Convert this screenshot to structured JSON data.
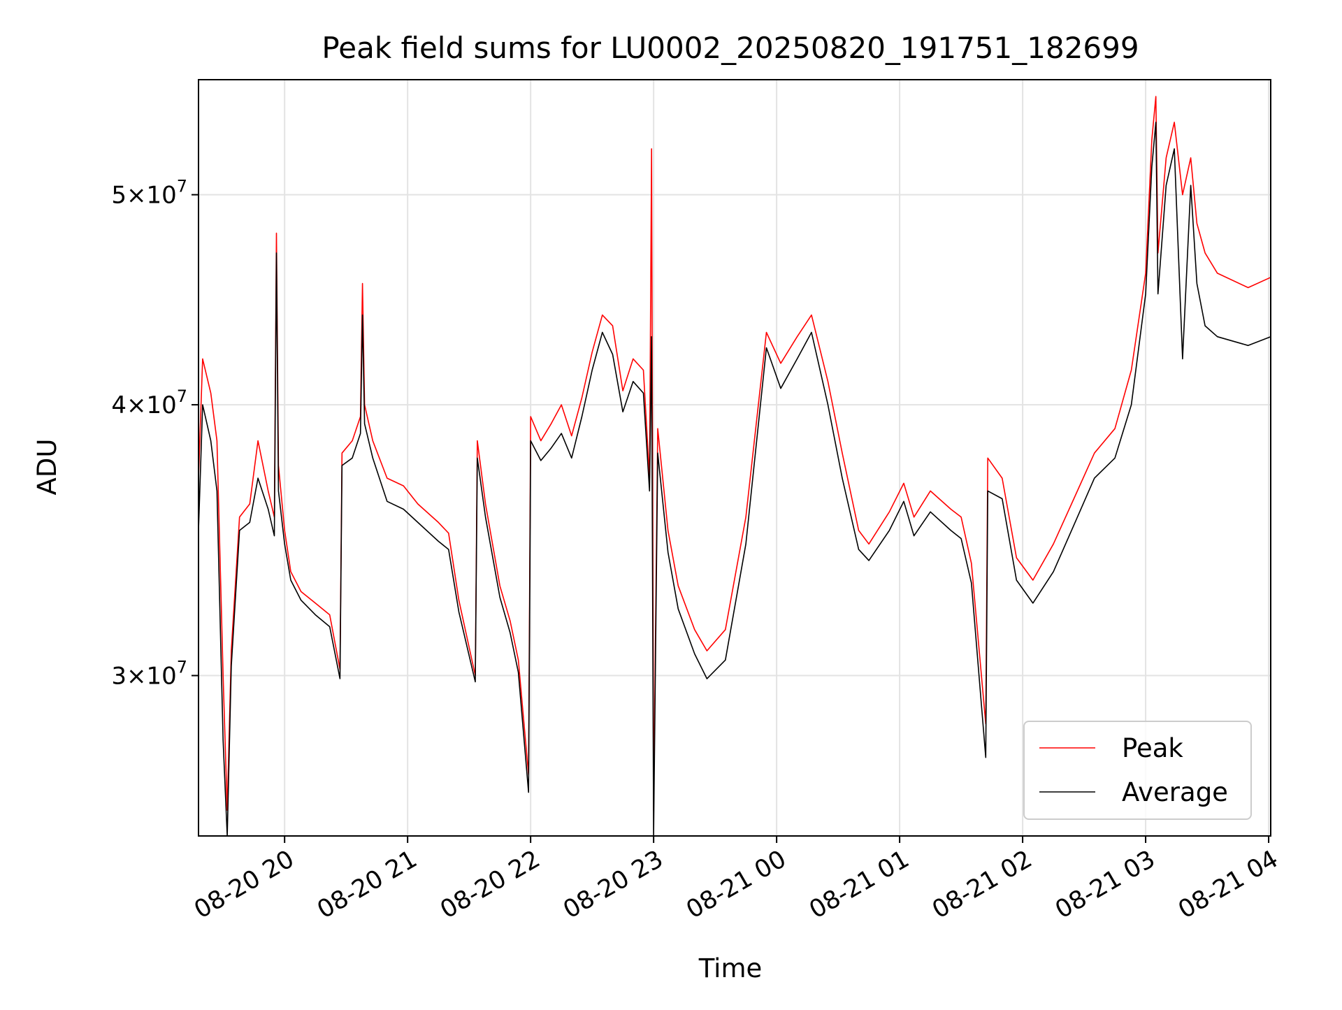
{
  "chart_data": {
    "type": "line",
    "title": "Peak field sums for LU0002_20250820_191751_182699",
    "xlabel": "Time",
    "ylabel": "ADU",
    "y_scale": "log",
    "xlim": [
      "2025-08-20 19:18",
      "2025-08-21 04:01"
    ],
    "ylim": [
      25300000,
      56500000
    ],
    "x_ticks": [
      "2025-08-20 20:00",
      "2025-08-20 21:00",
      "2025-08-20 22:00",
      "2025-08-20 23:00",
      "2025-08-21 00:00",
      "2025-08-21 01:00",
      "2025-08-21 02:00",
      "2025-08-21 03:00",
      "2025-08-21 04:00"
    ],
    "x_tick_labels": [
      "08-20 20",
      "08-20 21",
      "08-20 22",
      "08-20 23",
      "08-21 00",
      "08-21 01",
      "08-21 02",
      "08-21 03",
      "08-21 04"
    ],
    "y_ticks": [
      30000000,
      40000000,
      50000000
    ],
    "y_tick_labels": [
      {
        "mant": "3",
        "exp": "7"
      },
      {
        "mant": "4",
        "exp": "7"
      },
      {
        "mant": "5",
        "exp": "7"
      }
    ],
    "grid": true,
    "legend_position": "bottom-right",
    "series": [
      {
        "name": "Peak",
        "color": "#ff0000",
        "points": [
          [
            "2025-08-20 19:18",
            37000000
          ],
          [
            "2025-08-20 19:20",
            42000000
          ],
          [
            "2025-08-20 19:24",
            40500000
          ],
          [
            "2025-08-20 19:27",
            38500000
          ],
          [
            "2025-08-20 19:30",
            30000000
          ],
          [
            "2025-08-20 19:32",
            26000000
          ],
          [
            "2025-08-20 19:34",
            30800000
          ],
          [
            "2025-08-20 19:38",
            35500000
          ],
          [
            "2025-08-20 19:43",
            36000000
          ],
          [
            "2025-08-20 19:47",
            38500000
          ],
          [
            "2025-08-20 19:52",
            36500000
          ],
          [
            "2025-08-20 19:55",
            35500000
          ],
          [
            "2025-08-20 19:56",
            48000000
          ],
          [
            "2025-08-20 19:57",
            37500000
          ],
          [
            "2025-08-20 20:00",
            35000000
          ],
          [
            "2025-08-20 20:03",
            33500000
          ],
          [
            "2025-08-20 20:08",
            32800000
          ],
          [
            "2025-08-20 20:15",
            32400000
          ],
          [
            "2025-08-20 20:22",
            32000000
          ],
          [
            "2025-08-20 20:27",
            30200000
          ],
          [
            "2025-08-20 20:28",
            38000000
          ],
          [
            "2025-08-20 20:33",
            38500000
          ],
          [
            "2025-08-20 20:37",
            39500000
          ],
          [
            "2025-08-20 20:38",
            45500000
          ],
          [
            "2025-08-20 20:39",
            40000000
          ],
          [
            "2025-08-20 20:43",
            38500000
          ],
          [
            "2025-08-20 20:50",
            37000000
          ],
          [
            "2025-08-20 20:58",
            36700000
          ],
          [
            "2025-08-20 21:05",
            36000000
          ],
          [
            "2025-08-20 21:15",
            35300000
          ],
          [
            "2025-08-20 21:20",
            34900000
          ],
          [
            "2025-08-20 21:25",
            32500000
          ],
          [
            "2025-08-20 21:33",
            30000000
          ],
          [
            "2025-08-20 21:34",
            38500000
          ],
          [
            "2025-08-20 21:38",
            36000000
          ],
          [
            "2025-08-20 21:45",
            33000000
          ],
          [
            "2025-08-20 21:50",
            31800000
          ],
          [
            "2025-08-20 21:54",
            30500000
          ],
          [
            "2025-08-20 21:59",
            27000000
          ],
          [
            "2025-08-20 22:00",
            39500000
          ],
          [
            "2025-08-20 22:05",
            38500000
          ],
          [
            "2025-08-20 22:10",
            39200000
          ],
          [
            "2025-08-20 22:15",
            40000000
          ],
          [
            "2025-08-20 22:20",
            38700000
          ],
          [
            "2025-08-20 22:25",
            40300000
          ],
          [
            "2025-08-20 22:30",
            42300000
          ],
          [
            "2025-08-20 22:35",
            44000000
          ],
          [
            "2025-08-20 22:40",
            43500000
          ],
          [
            "2025-08-20 22:45",
            40600000
          ],
          [
            "2025-08-20 22:50",
            42000000
          ],
          [
            "2025-08-20 22:55",
            41500000
          ],
          [
            "2025-08-20 22:58",
            37000000
          ],
          [
            "2025-08-20 22:59",
            52500000
          ],
          [
            "2025-08-20 23:00",
            26000000
          ],
          [
            "2025-08-20 23:02",
            39000000
          ],
          [
            "2025-08-20 23:07",
            35000000
          ],
          [
            "2025-08-20 23:12",
            33000000
          ],
          [
            "2025-08-20 23:20",
            31500000
          ],
          [
            "2025-08-20 23:26",
            30800000
          ],
          [
            "2025-08-20 23:35",
            31500000
          ],
          [
            "2025-08-20 23:45",
            35500000
          ],
          [
            "2025-08-20 23:55",
            43200000
          ],
          [
            "2025-08-21 00:02",
            41800000
          ],
          [
            "2025-08-21 00:10",
            43000000
          ],
          [
            "2025-08-21 00:17",
            44000000
          ],
          [
            "2025-08-21 00:25",
            41000000
          ],
          [
            "2025-08-21 00:32",
            38000000
          ],
          [
            "2025-08-21 00:40",
            35000000
          ],
          [
            "2025-08-21 00:45",
            34500000
          ],
          [
            "2025-08-21 00:55",
            35700000
          ],
          [
            "2025-08-21 01:02",
            36800000
          ],
          [
            "2025-08-21 01:07",
            35500000
          ],
          [
            "2025-08-21 01:15",
            36500000
          ],
          [
            "2025-08-21 01:25",
            35800000
          ],
          [
            "2025-08-21 01:30",
            35500000
          ],
          [
            "2025-08-21 01:35",
            33800000
          ],
          [
            "2025-08-21 01:42",
            28500000
          ],
          [
            "2025-08-21 01:43",
            37800000
          ],
          [
            "2025-08-21 01:50",
            37000000
          ],
          [
            "2025-08-21 01:57",
            34000000
          ],
          [
            "2025-08-21 02:05",
            33200000
          ],
          [
            "2025-08-21 02:15",
            34500000
          ],
          [
            "2025-08-21 02:25",
            36200000
          ],
          [
            "2025-08-21 02:35",
            38000000
          ],
          [
            "2025-08-21 02:45",
            39000000
          ],
          [
            "2025-08-21 02:53",
            41500000
          ],
          [
            "2025-08-21 03:00",
            46000000
          ],
          [
            "2025-08-21 03:03",
            53000000
          ],
          [
            "2025-08-21 03:05",
            55500000
          ],
          [
            "2025-08-21 03:06",
            47000000
          ],
          [
            "2025-08-21 03:10",
            52000000
          ],
          [
            "2025-08-21 03:14",
            54000000
          ],
          [
            "2025-08-21 03:18",
            50000000
          ],
          [
            "2025-08-21 03:22",
            52000000
          ],
          [
            "2025-08-21 03:25",
            48500000
          ],
          [
            "2025-08-21 03:29",
            47000000
          ],
          [
            "2025-08-21 03:35",
            46000000
          ],
          [
            "2025-08-21 03:50",
            45300000
          ],
          [
            "2025-08-21 04:01",
            45800000
          ]
        ]
      },
      {
        "name": "Average",
        "color": "#000000",
        "points": [
          [
            "2025-08-20 19:18",
            35000000
          ],
          [
            "2025-08-20 19:20",
            40000000
          ],
          [
            "2025-08-20 19:24",
            38500000
          ],
          [
            "2025-08-20 19:27",
            36500000
          ],
          [
            "2025-08-20 19:30",
            28000000
          ],
          [
            "2025-08-20 19:32",
            25300000
          ],
          [
            "2025-08-20 19:34",
            30300000
          ],
          [
            "2025-08-20 19:38",
            35000000
          ],
          [
            "2025-08-20 19:43",
            35300000
          ],
          [
            "2025-08-20 19:47",
            37000000
          ],
          [
            "2025-08-20 19:52",
            35800000
          ],
          [
            "2025-08-20 19:55",
            34800000
          ],
          [
            "2025-08-20 19:56",
            47000000
          ],
          [
            "2025-08-20 19:57",
            36500000
          ],
          [
            "2025-08-20 20:00",
            34500000
          ],
          [
            "2025-08-20 20:03",
            33200000
          ],
          [
            "2025-08-20 20:08",
            32500000
          ],
          [
            "2025-08-20 20:15",
            32000000
          ],
          [
            "2025-08-20 20:22",
            31600000
          ],
          [
            "2025-08-20 20:27",
            29900000
          ],
          [
            "2025-08-20 20:28",
            37500000
          ],
          [
            "2025-08-20 20:33",
            37800000
          ],
          [
            "2025-08-20 20:37",
            38800000
          ],
          [
            "2025-08-20 20:38",
            44000000
          ],
          [
            "2025-08-20 20:39",
            39200000
          ],
          [
            "2025-08-20 20:43",
            37800000
          ],
          [
            "2025-08-20 20:50",
            36100000
          ],
          [
            "2025-08-20 20:58",
            35800000
          ],
          [
            "2025-08-20 21:05",
            35300000
          ],
          [
            "2025-08-20 21:15",
            34600000
          ],
          [
            "2025-08-20 21:20",
            34300000
          ],
          [
            "2025-08-20 21:25",
            32100000
          ],
          [
            "2025-08-20 21:33",
            29800000
          ],
          [
            "2025-08-20 21:34",
            37800000
          ],
          [
            "2025-08-20 21:38",
            35500000
          ],
          [
            "2025-08-20 21:45",
            32600000
          ],
          [
            "2025-08-20 21:50",
            31400000
          ],
          [
            "2025-08-20 21:54",
            30100000
          ],
          [
            "2025-08-20 21:59",
            26500000
          ],
          [
            "2025-08-20 22:00",
            38500000
          ],
          [
            "2025-08-20 22:05",
            37700000
          ],
          [
            "2025-08-20 22:10",
            38200000
          ],
          [
            "2025-08-20 22:15",
            38800000
          ],
          [
            "2025-08-20 22:20",
            37800000
          ],
          [
            "2025-08-20 22:25",
            39500000
          ],
          [
            "2025-08-20 22:30",
            41500000
          ],
          [
            "2025-08-20 22:35",
            43200000
          ],
          [
            "2025-08-20 22:40",
            42200000
          ],
          [
            "2025-08-20 22:45",
            39700000
          ],
          [
            "2025-08-20 22:50",
            41000000
          ],
          [
            "2025-08-20 22:55",
            40500000
          ],
          [
            "2025-08-20 22:58",
            36500000
          ],
          [
            "2025-08-20 22:59",
            43000000
          ],
          [
            "2025-08-20 23:00",
            25300000
          ],
          [
            "2025-08-20 23:02",
            38000000
          ],
          [
            "2025-08-20 23:07",
            34200000
          ],
          [
            "2025-08-20 23:12",
            32200000
          ],
          [
            "2025-08-20 23:20",
            30700000
          ],
          [
            "2025-08-20 23:26",
            29900000
          ],
          [
            "2025-08-20 23:35",
            30500000
          ],
          [
            "2025-08-20 23:45",
            34500000
          ],
          [
            "2025-08-20 23:55",
            42500000
          ],
          [
            "2025-08-21 00:02",
            40700000
          ],
          [
            "2025-08-21 00:10",
            42000000
          ],
          [
            "2025-08-21 00:17",
            43200000
          ],
          [
            "2025-08-21 00:25",
            40000000
          ],
          [
            "2025-08-21 00:32",
            37000000
          ],
          [
            "2025-08-21 00:40",
            34300000
          ],
          [
            "2025-08-21 00:45",
            33900000
          ],
          [
            "2025-08-21 00:55",
            35000000
          ],
          [
            "2025-08-21 01:02",
            36100000
          ],
          [
            "2025-08-21 01:07",
            34800000
          ],
          [
            "2025-08-21 01:15",
            35700000
          ],
          [
            "2025-08-21 01:25",
            35000000
          ],
          [
            "2025-08-21 01:30",
            34700000
          ],
          [
            "2025-08-21 01:35",
            33100000
          ],
          [
            "2025-08-21 01:42",
            27500000
          ],
          [
            "2025-08-21 01:43",
            36500000
          ],
          [
            "2025-08-21 01:50",
            36200000
          ],
          [
            "2025-08-21 01:57",
            33200000
          ],
          [
            "2025-08-21 02:05",
            32400000
          ],
          [
            "2025-08-21 02:15",
            33500000
          ],
          [
            "2025-08-21 02:25",
            35200000
          ],
          [
            "2025-08-21 02:35",
            37000000
          ],
          [
            "2025-08-21 02:45",
            37800000
          ],
          [
            "2025-08-21 02:53",
            40000000
          ],
          [
            "2025-08-21 03:00",
            45000000
          ],
          [
            "2025-08-21 03:03",
            51500000
          ],
          [
            "2025-08-21 03:05",
            54000000
          ],
          [
            "2025-08-21 03:06",
            45000000
          ],
          [
            "2025-08-21 03:10",
            50500000
          ],
          [
            "2025-08-21 03:14",
            52500000
          ],
          [
            "2025-08-21 03:18",
            42000000
          ],
          [
            "2025-08-21 03:22",
            50500000
          ],
          [
            "2025-08-21 03:25",
            45500000
          ],
          [
            "2025-08-21 03:29",
            43500000
          ],
          [
            "2025-08-21 03:35",
            43000000
          ],
          [
            "2025-08-21 03:50",
            42600000
          ],
          [
            "2025-08-21 04:01",
            43000000
          ]
        ]
      }
    ]
  }
}
